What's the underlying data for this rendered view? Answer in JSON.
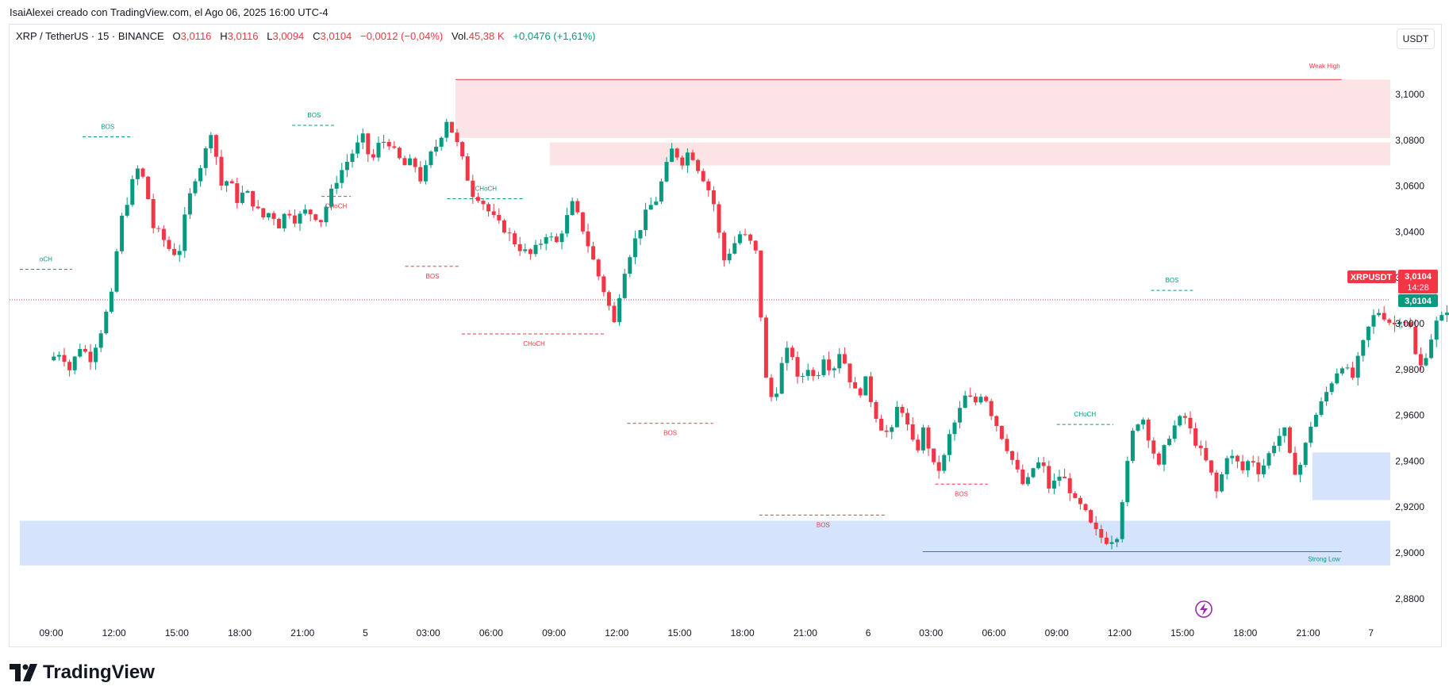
{
  "caption": "IsaiAlexei creado con TradingView.com, el Ago 06, 2025 16:00 UTC-4",
  "legend": {
    "symbol": "XRP / TetherUS · 15 · BINANCE",
    "o_label": "O",
    "o_value": "3,0116",
    "h_label": "H",
    "h_value": "3,0116",
    "l_label": "L",
    "l_value": "3,0094",
    "c_label": "C",
    "c_value": "3,0104",
    "change": "−0,0012 (−0,04%)",
    "vol_label": "Vol.",
    "vol_value": "45,38 K",
    "day_change": "+0,0476 (+1,61%)"
  },
  "currency_button": "USDT",
  "brand": "TradingView",
  "price_labels": {
    "symbol_tag": "XRPUSDT",
    "last_price": "3,0104",
    "countdown": "14:28",
    "close_price": "3,0104"
  },
  "colors": {
    "up": "#089981",
    "down": "#f23645",
    "supply_zone": "#fce4e6",
    "demand_zone": "#d6e3fc"
  },
  "chart_data": {
    "type": "candlestick",
    "symbol": "XRP / TetherUS",
    "interval": "15",
    "exchange": "BINANCE",
    "y_range": [
      2.87,
      3.112
    ],
    "y_ticks": [
      "3,1000",
      "3,0800",
      "3,0600",
      "3,0400",
      "3,0200",
      "3,0000",
      "2,9800",
      "2,9600",
      "2,9400",
      "2,9200",
      "2,9000",
      "2,8800"
    ],
    "x_ticks": [
      "09:00",
      "12:00",
      "15:00",
      "18:00",
      "21:00",
      "5",
      "03:00",
      "06:00",
      "09:00",
      "12:00",
      "15:00",
      "18:00",
      "21:00",
      "6",
      "03:00",
      "06:00",
      "09:00",
      "12:00",
      "15:00",
      "18:00",
      "21:00",
      "7"
    ],
    "x_range_hours": [
      -1.5,
      65.0
    ],
    "last_price": 3.0104,
    "path_points": [
      [
        0.0,
        2.984
      ],
      [
        0.6,
        2.988
      ],
      [
        1.0,
        2.98
      ],
      [
        1.5,
        2.99
      ],
      [
        2.0,
        2.985
      ],
      [
        2.5,
        2.997
      ],
      [
        3.0,
        3.012
      ],
      [
        3.4,
        3.043
      ],
      [
        3.8,
        3.055
      ],
      [
        4.2,
        3.068
      ],
      [
        4.6,
        3.062
      ],
      [
        5.0,
        3.042
      ],
      [
        5.4,
        3.038
      ],
      [
        5.8,
        3.032
      ],
      [
        6.2,
        3.03
      ],
      [
        6.6,
        3.051
      ],
      [
        7.0,
        3.064
      ],
      [
        7.4,
        3.072
      ],
      [
        7.8,
        3.086
      ],
      [
        8.2,
        3.06
      ],
      [
        8.6,
        3.063
      ],
      [
        9.0,
        3.054
      ],
      [
        9.4,
        3.058
      ],
      [
        9.8,
        3.052
      ],
      [
        10.2,
        3.046
      ],
      [
        10.6,
        3.049
      ],
      [
        11.0,
        3.043
      ],
      [
        11.4,
        3.05
      ],
      [
        11.8,
        3.045
      ],
      [
        12.2,
        3.049
      ],
      [
        12.6,
        3.048
      ],
      [
        13.0,
        3.045
      ],
      [
        13.4,
        3.055
      ],
      [
        13.8,
        3.064
      ],
      [
        14.2,
        3.07
      ],
      [
        14.6,
        3.076
      ],
      [
        15.0,
        3.081
      ],
      [
        15.4,
        3.07
      ],
      [
        15.8,
        3.079
      ],
      [
        16.2,
        3.08
      ],
      [
        16.6,
        3.073
      ],
      [
        17.0,
        3.069
      ],
      [
        17.4,
        3.071
      ],
      [
        17.8,
        3.062
      ],
      [
        18.2,
        3.073
      ],
      [
        18.6,
        3.079
      ],
      [
        19.0,
        3.089
      ],
      [
        19.4,
        3.081
      ],
      [
        19.8,
        3.07
      ],
      [
        20.2,
        3.057
      ],
      [
        20.6,
        3.055
      ],
      [
        21.0,
        3.049
      ],
      [
        21.4,
        3.044
      ],
      [
        21.8,
        3.041
      ],
      [
        22.2,
        3.036
      ],
      [
        22.6,
        3.032
      ],
      [
        23.0,
        3.03
      ],
      [
        23.4,
        3.034
      ],
      [
        23.8,
        3.04
      ],
      [
        24.2,
        3.034
      ],
      [
        24.6,
        3.043
      ],
      [
        25.0,
        3.052
      ],
      [
        25.4,
        3.044
      ],
      [
        25.8,
        3.033
      ],
      [
        26.2,
        3.022
      ],
      [
        26.6,
        3.012
      ],
      [
        27.0,
        3.0
      ],
      [
        27.4,
        3.021
      ],
      [
        27.8,
        3.032
      ],
      [
        28.2,
        3.041
      ],
      [
        28.6,
        3.05
      ],
      [
        29.0,
        3.054
      ],
      [
        29.4,
        3.066
      ],
      [
        29.8,
        3.077
      ],
      [
        30.2,
        3.07
      ],
      [
        30.6,
        3.076
      ],
      [
        31.0,
        3.068
      ],
      [
        31.4,
        3.061
      ],
      [
        31.8,
        3.051
      ],
      [
        32.2,
        3.027
      ],
      [
        32.6,
        3.033
      ],
      [
        33.0,
        3.039
      ],
      [
        33.4,
        3.037
      ],
      [
        33.8,
        3.03
      ],
      [
        34.2,
        2.977
      ],
      [
        34.6,
        2.965
      ],
      [
        35.0,
        2.982
      ],
      [
        35.4,
        2.991
      ],
      [
        35.8,
        2.973
      ],
      [
        36.2,
        2.982
      ],
      [
        36.6,
        2.975
      ],
      [
        37.0,
        2.986
      ],
      [
        37.4,
        2.979
      ],
      [
        37.8,
        2.989
      ],
      [
        38.2,
        2.977
      ],
      [
        38.6,
        2.968
      ],
      [
        39.0,
        2.975
      ],
      [
        39.4,
        2.962
      ],
      [
        39.8,
        2.954
      ],
      [
        40.2,
        2.951
      ],
      [
        40.6,
        2.967
      ],
      [
        41.0,
        2.955
      ],
      [
        41.4,
        2.943
      ],
      [
        41.8,
        2.955
      ],
      [
        42.2,
        2.938
      ],
      [
        42.6,
        2.936
      ],
      [
        43.0,
        2.951
      ],
      [
        43.4,
        2.96
      ],
      [
        43.8,
        2.969
      ],
      [
        44.2,
        2.965
      ],
      [
        44.6,
        2.971
      ],
      [
        45.0,
        2.961
      ],
      [
        45.4,
        2.953
      ],
      [
        45.8,
        2.945
      ],
      [
        46.2,
        2.936
      ],
      [
        46.6,
        2.928
      ],
      [
        47.0,
        2.937
      ],
      [
        47.4,
        2.94
      ],
      [
        47.8,
        2.927
      ],
      [
        48.2,
        2.934
      ],
      [
        48.6,
        2.931
      ],
      [
        49.0,
        2.922
      ],
      [
        49.4,
        2.919
      ],
      [
        49.8,
        2.911
      ],
      [
        50.2,
        2.907
      ],
      [
        50.6,
        2.905
      ],
      [
        51.0,
        2.908
      ],
      [
        51.4,
        2.933
      ],
      [
        51.8,
        2.955
      ],
      [
        52.2,
        2.96
      ],
      [
        52.6,
        2.948
      ],
      [
        53.0,
        2.937
      ],
      [
        53.4,
        2.95
      ],
      [
        53.8,
        2.956
      ],
      [
        54.2,
        2.96
      ],
      [
        54.6,
        2.951
      ],
      [
        55.0,
        2.944
      ],
      [
        55.4,
        2.937
      ],
      [
        55.8,
        2.925
      ],
      [
        56.2,
        2.943
      ],
      [
        56.6,
        2.941
      ],
      [
        57.0,
        2.936
      ],
      [
        57.4,
        2.942
      ],
      [
        57.8,
        2.935
      ],
      [
        58.2,
        2.942
      ],
      [
        58.6,
        2.95
      ],
      [
        59.0,
        2.953
      ],
      [
        59.4,
        2.935
      ],
      [
        59.8,
        2.939
      ],
      [
        60.2,
        2.955
      ],
      [
        60.6,
        2.962
      ],
      [
        61.0,
        2.97
      ],
      [
        61.4,
        2.978
      ],
      [
        61.8,
        2.983
      ],
      [
        62.2,
        2.975
      ],
      [
        62.6,
        2.987
      ],
      [
        63.0,
        2.998
      ],
      [
        63.4,
        3.006
      ],
      [
        63.8,
        3.003
      ],
      [
        64.2,
        2.999
      ],
      [
        64.6,
        3.004
      ],
      [
        65.0,
        2.998
      ],
      [
        65.4,
        2.979
      ],
      [
        65.8,
        2.988
      ],
      [
        66.2,
        3.0
      ],
      [
        66.6,
        3.003
      ],
      [
        67.0,
        3.012
      ],
      [
        67.4,
        3.003
      ],
      [
        67.8,
        3.005
      ],
      [
        68.2,
        3.012
      ],
      [
        68.6,
        3.008
      ],
      [
        69.0,
        3.003
      ],
      [
        69.4,
        3.01
      ]
    ],
    "zones": [
      {
        "kind": "supply",
        "x1": 19.3,
        "x2": 65.0,
        "y_top": 3.1065,
        "y_bottom": 3.081
      },
      {
        "kind": "supply",
        "x1": 23.8,
        "x2": 65.0,
        "y_top": 3.079,
        "y_bottom": 3.069
      },
      {
        "kind": "demand",
        "x1": 64.5,
        "x2": 65.0,
        "y_top": 2.983,
        "y_bottom": 2.9695
      },
      {
        "kind": "demand",
        "x1": 60.2,
        "x2": 65.0,
        "y_top": 2.9438,
        "y_bottom": 2.923
      },
      {
        "kind": "demand",
        "x1": -1.5,
        "x2": 65.0,
        "y_top": 2.914,
        "y_bottom": 2.8945
      }
    ],
    "levels": [
      {
        "label": "Weak High",
        "x1": 19.3,
        "x2": 61.6,
        "y": 3.1065,
        "color": "#f23645",
        "style": "solid"
      },
      {
        "label": "Strong Low",
        "x1": 41.6,
        "x2": 61.6,
        "y": 2.9005,
        "color": "#089981",
        "style": "solid"
      }
    ],
    "structure": [
      {
        "label": "BOS",
        "x1": 1.5,
        "x2": 3.9,
        "y": 3.0815,
        "color": "#089981"
      },
      {
        "label": "oCH",
        "x1": -1.5,
        "x2": 1.0,
        "y": 3.0237,
        "color": "#089981"
      },
      {
        "label": "BOS",
        "x1": 11.5,
        "x2": 13.6,
        "y": 3.0865,
        "color": "#089981"
      },
      {
        "label": "CHoCH",
        "x1": 12.9,
        "x2": 14.3,
        "y": 3.0555,
        "color": "#f23645"
      },
      {
        "label": "BOS",
        "x1": 16.9,
        "x2": 19.5,
        "y": 3.025,
        "color": "#f23645"
      },
      {
        "label": "CHoCH",
        "x1": 18.9,
        "x2": 22.6,
        "y": 3.0545,
        "color": "#089981"
      },
      {
        "label": "CHoCH",
        "x1": 19.6,
        "x2": 26.5,
        "y": 2.9955,
        "color": "#f23645"
      },
      {
        "label": "BOS",
        "x1": 27.5,
        "x2": 31.6,
        "y": 2.9565,
        "color": "#f23645"
      },
      {
        "label": "BOS",
        "x1": 33.8,
        "x2": 39.9,
        "y": 2.9165,
        "color": "#f23645"
      },
      {
        "label": "BOS",
        "x1": 42.2,
        "x2": 44.7,
        "y": 2.93,
        "color": "#f23645"
      },
      {
        "label": "CHoCH",
        "x1": 48.0,
        "x2": 50.7,
        "y": 2.956,
        "color": "#089981"
      },
      {
        "label": "BOS",
        "x1": 52.5,
        "x2": 54.5,
        "y": 3.0145,
        "color": "#089981"
      }
    ]
  }
}
